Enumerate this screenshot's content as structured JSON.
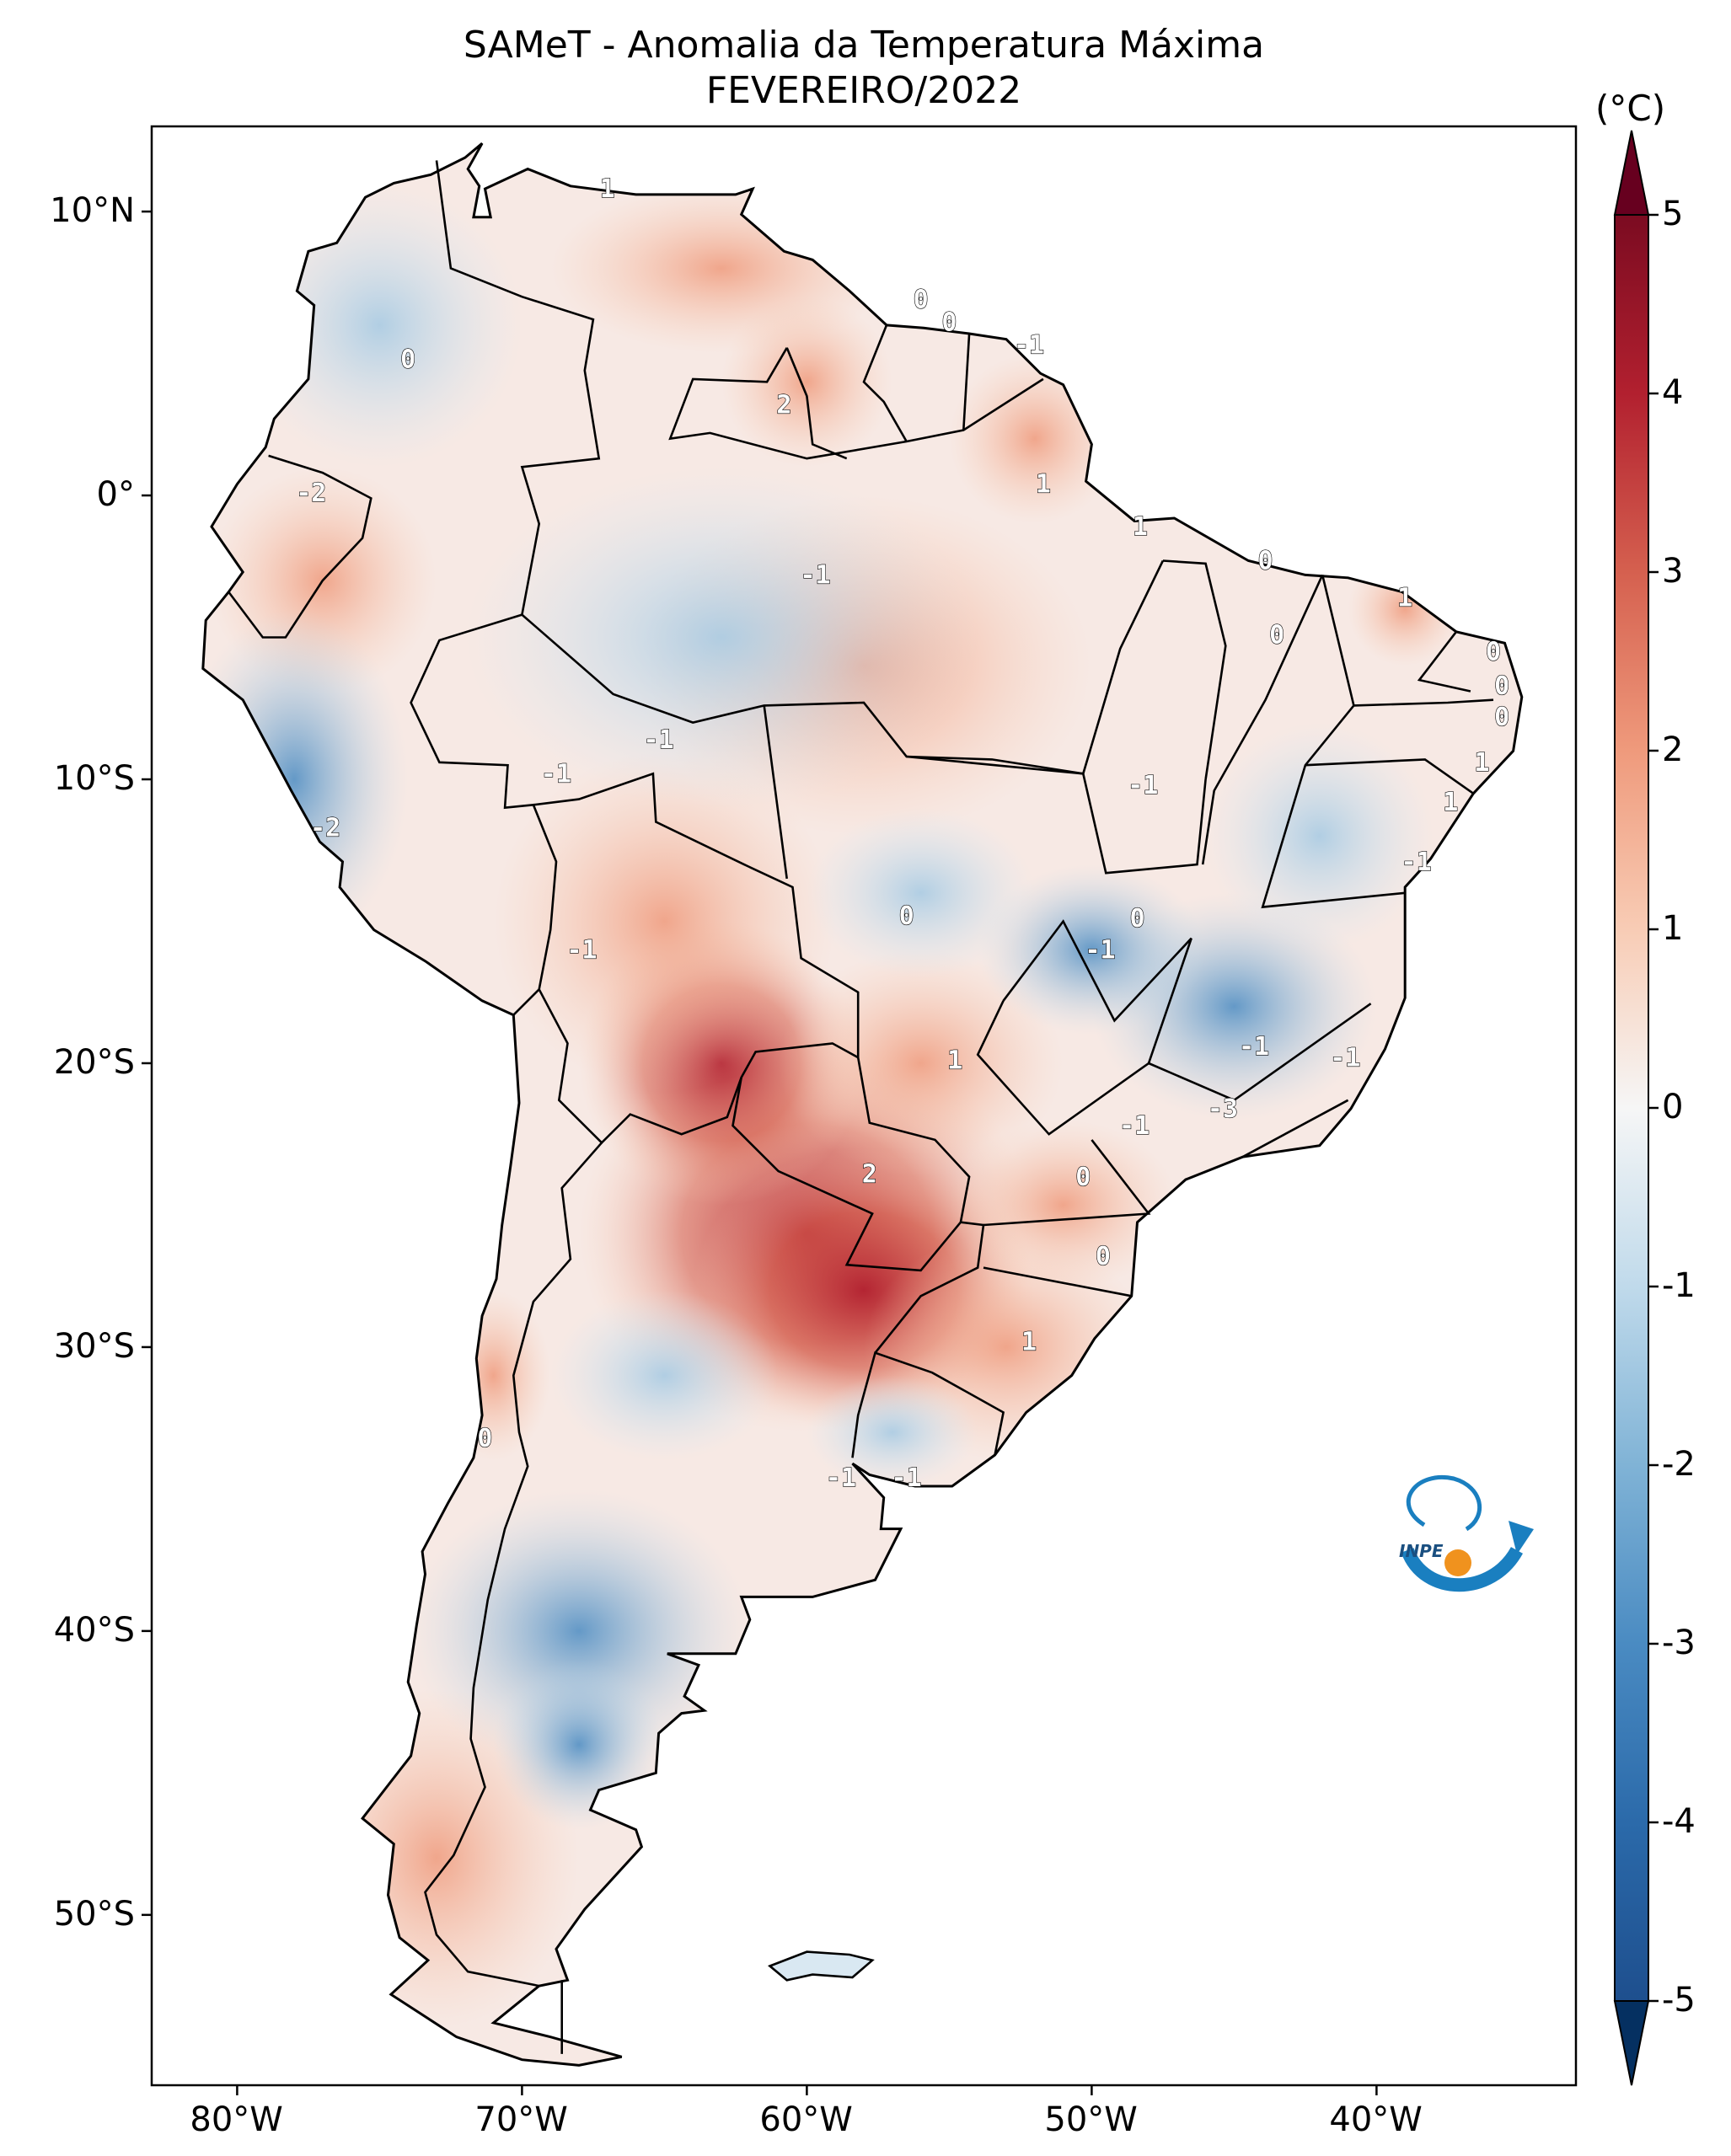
{
  "title_line1": "SAMeT - Anomalia da Temperatura Máxima",
  "title_line2": "FEVEREIRO/2022",
  "colorbar": {
    "unit": "(°C)",
    "ticks": [
      "5",
      "4",
      "3",
      "2",
      "1",
      "0",
      "-1",
      "-2",
      "-3",
      "-4",
      "-5"
    ],
    "range": [
      -5,
      5
    ],
    "colormap": "RdBu_r",
    "extend": "both"
  },
  "axes": {
    "lon_labels": [
      "80°W",
      "70°W",
      "60°W",
      "50°W",
      "40°W"
    ],
    "lat_labels": [
      "10°N",
      "0°",
      "10°S",
      "20°S",
      "30°S",
      "40°S",
      "50°S"
    ]
  },
  "contour_labels": [
    {
      "lon": -67,
      "lat": 10.5,
      "text": "1"
    },
    {
      "lon": -56,
      "lat": 6.6,
      "text": "0"
    },
    {
      "lon": -55,
      "lat": 5.8,
      "text": "0"
    },
    {
      "lon": -52.2,
      "lat": 5.0,
      "text": "-1"
    },
    {
      "lon": -74,
      "lat": 4.5,
      "text": "0"
    },
    {
      "lon": -60.8,
      "lat": 2.9,
      "text": "2"
    },
    {
      "lon": -77.4,
      "lat": -0.2,
      "text": "-2"
    },
    {
      "lon": -51.7,
      "lat": 0.1,
      "text": "1"
    },
    {
      "lon": -48.3,
      "lat": -1.4,
      "text": "1"
    },
    {
      "lon": -59.7,
      "lat": -3.1,
      "text": "-1"
    },
    {
      "lon": -43.9,
      "lat": -2.6,
      "text": "0"
    },
    {
      "lon": -39,
      "lat": -3.9,
      "text": "1"
    },
    {
      "lon": -43.5,
      "lat": -5.2,
      "text": "0"
    },
    {
      "lon": -35.9,
      "lat": -5.8,
      "text": "0"
    },
    {
      "lon": -35.6,
      "lat": -7,
      "text": "0"
    },
    {
      "lon": -35.6,
      "lat": -8.1,
      "text": "0"
    },
    {
      "lon": -65.2,
      "lat": -8.9,
      "text": "-1"
    },
    {
      "lon": -36.3,
      "lat": -9.7,
      "text": "1"
    },
    {
      "lon": -68.8,
      "lat": -10.1,
      "text": "-1"
    },
    {
      "lon": -48.2,
      "lat": -10.5,
      "text": "-1"
    },
    {
      "lon": -37.4,
      "lat": -11.1,
      "text": "1"
    },
    {
      "lon": -76.9,
      "lat": -12,
      "text": "-2"
    },
    {
      "lon": -38.6,
      "lat": -13.2,
      "text": "-1"
    },
    {
      "lon": -56.5,
      "lat": -15.1,
      "text": "0"
    },
    {
      "lon": -67.9,
      "lat": -16.3,
      "text": "-1"
    },
    {
      "lon": -48.4,
      "lat": -15.2,
      "text": "0"
    },
    {
      "lon": -49.7,
      "lat": -16.3,
      "text": "-1"
    },
    {
      "lon": -54.8,
      "lat": -20.2,
      "text": "1"
    },
    {
      "lon": -44.3,
      "lat": -19.7,
      "text": "-1"
    },
    {
      "lon": -41.1,
      "lat": -20.1,
      "text": "-1"
    },
    {
      "lon": -48.5,
      "lat": -22.5,
      "text": "-1"
    },
    {
      "lon": -45.4,
      "lat": -21.9,
      "text": "-3"
    },
    {
      "lon": -57.8,
      "lat": -24.2,
      "text": "2"
    },
    {
      "lon": -50.3,
      "lat": -24.3,
      "text": "0"
    },
    {
      "lon": -49.6,
      "lat": -27.1,
      "text": "0"
    },
    {
      "lon": -52.2,
      "lat": -30.1,
      "text": "1"
    },
    {
      "lon": -71.3,
      "lat": -33.5,
      "text": "0"
    },
    {
      "lon": -58.8,
      "lat": -34.9,
      "text": "-1"
    },
    {
      "lon": -56.5,
      "lat": -34.9,
      "text": "-1"
    }
  ],
  "logo": {
    "text": "INPE",
    "accent": "#1a7fc0",
    "dot": "#f0921e"
  },
  "colors": {
    "land_default": "#f5f5f5",
    "ocean": "#ffffff",
    "border": "#000000"
  }
}
